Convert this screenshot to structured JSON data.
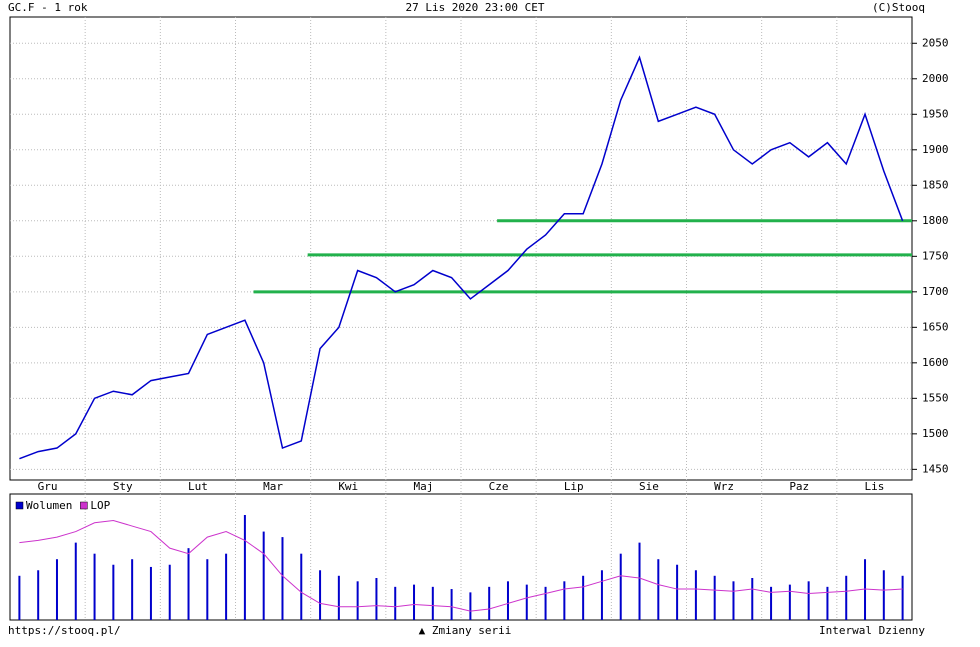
{
  "header": {
    "left": "GC.F - 1 rok",
    "center": "27 Lis 2020 23:00 CET",
    "right": "(C)Stooq"
  },
  "chart_data": [
    {
      "type": "line",
      "color": "#0000cc",
      "categories": [
        null,
        "Gru",
        null,
        null,
        null,
        "Sty",
        null,
        null,
        null,
        "Lut",
        null,
        null,
        null,
        "Mar",
        null,
        null,
        null,
        "Kwi",
        null,
        null,
        null,
        "Maj",
        null,
        null,
        null,
        "Cze",
        null,
        null,
        null,
        "Lip",
        null,
        null,
        null,
        "Sie",
        null,
        null,
        null,
        "Wrz",
        null,
        null,
        null,
        "Paz",
        null,
        null,
        null,
        "Lis",
        null,
        null
      ],
      "values": [
        1465,
        1475,
        1480,
        1500,
        1550,
        1560,
        1555,
        1575,
        1580,
        1585,
        1640,
        1650,
        1660,
        1600,
        1480,
        1490,
        1620,
        1650,
        1730,
        1720,
        1700,
        1710,
        1730,
        1720,
        1690,
        1710,
        1730,
        1760,
        1780,
        1810,
        1810,
        1880,
        1970,
        2030,
        1940,
        1950,
        1960,
        1950,
        1900,
        1880,
        1900,
        1910,
        1890,
        1910,
        1880,
        1950,
        1870,
        1800
      ],
      "ylim": [
        1435,
        2087
      ],
      "yticks": [
        1450,
        1500,
        1550,
        1600,
        1650,
        1700,
        1750,
        1800,
        1850,
        1900,
        1950,
        2000,
        2050
      ],
      "grid": true,
      "hlines": {
        "color": "#22b14c",
        "values": [
          1800,
          1752,
          1700
        ]
      }
    },
    {
      "type": "bar",
      "series": [
        {
          "name": "Wolumen",
          "color": "#0000cc",
          "values": [
            40,
            45,
            55,
            70,
            60,
            50,
            55,
            48,
            50,
            65,
            55,
            60,
            95,
            80,
            75,
            60,
            45,
            40,
            35,
            38,
            30,
            32,
            30,
            28,
            25,
            30,
            35,
            32,
            30,
            35,
            40,
            45,
            60,
            70,
            55,
            50,
            45,
            40,
            35,
            38,
            30,
            32,
            35,
            30,
            40,
            55,
            45,
            40
          ]
        },
        {
          "name": "LOP",
          "color": "#cc33cc",
          "values": [
            70,
            72,
            75,
            80,
            88,
            90,
            85,
            80,
            65,
            60,
            75,
            80,
            72,
            60,
            40,
            25,
            15,
            12,
            12,
            13,
            12,
            14,
            13,
            12,
            8,
            10,
            15,
            20,
            24,
            28,
            30,
            35,
            40,
            38,
            32,
            28,
            28,
            27,
            26,
            28,
            25,
            26,
            24,
            25,
            26,
            28,
            27,
            28
          ]
        }
      ],
      "legend": "top-left"
    }
  ],
  "footer": {
    "left": "https://stooq.pl/",
    "center": "▲ Zmiany serii",
    "right": "Interwal Dzienny"
  }
}
